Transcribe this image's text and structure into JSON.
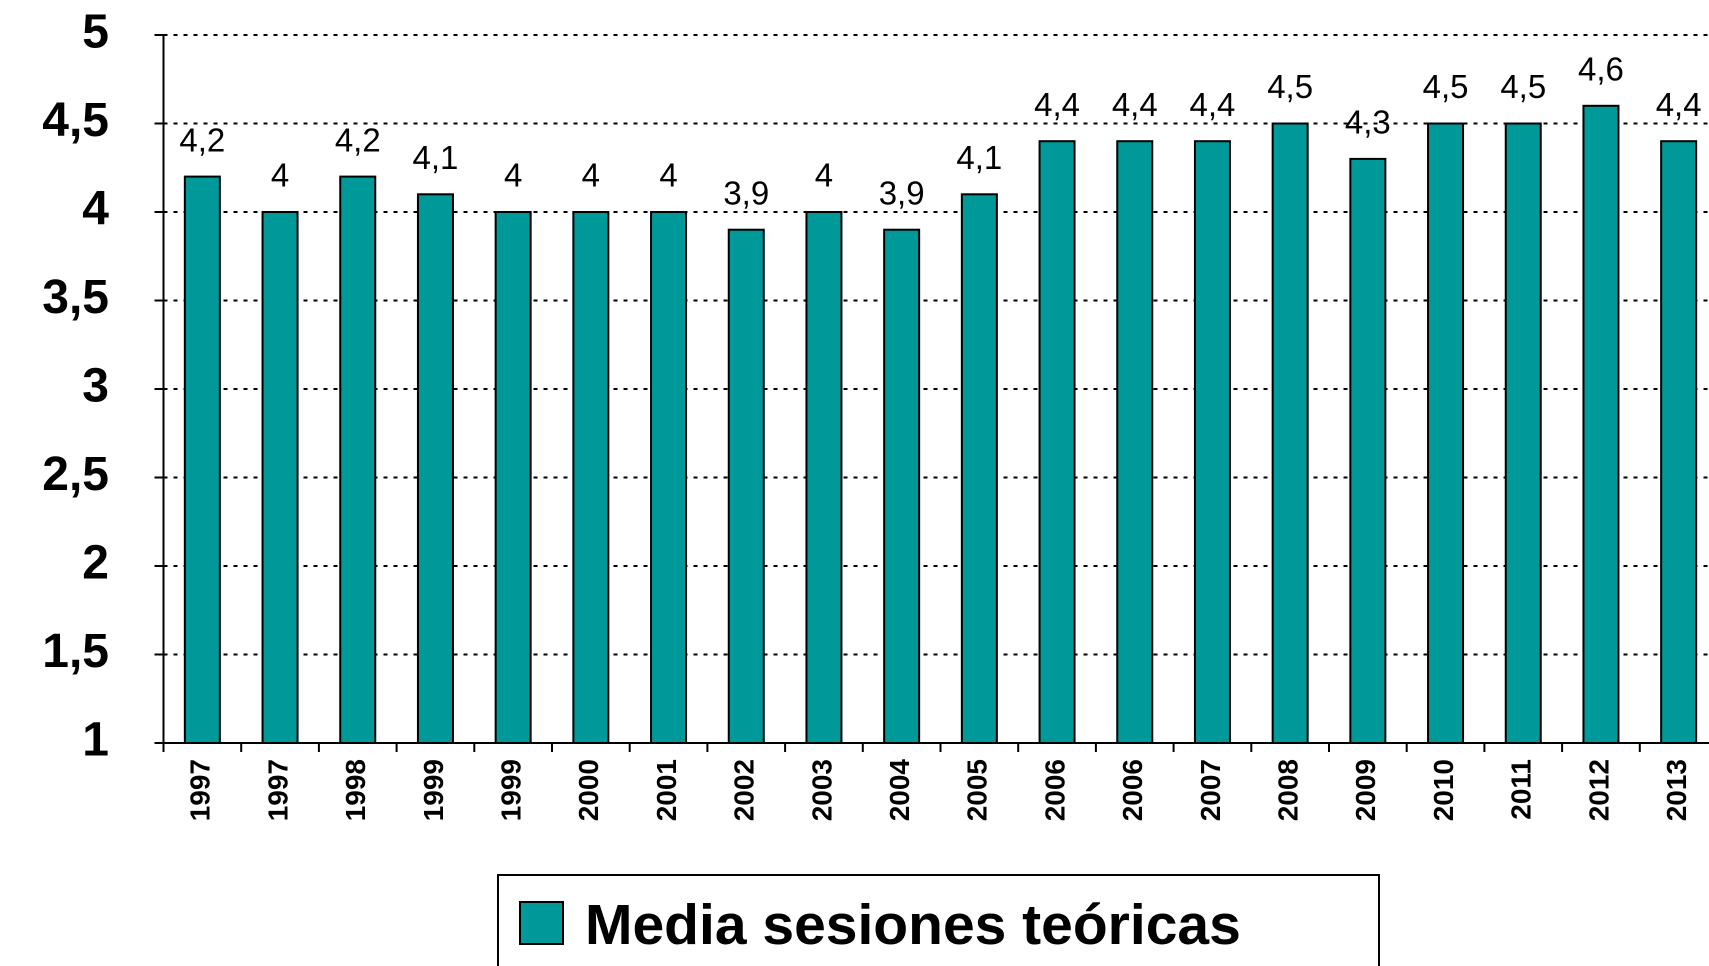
{
  "chart_data": {
    "type": "bar",
    "categories": [
      "1997",
      "1997",
      "1998",
      "1999",
      "1999",
      "2000",
      "2001",
      "2002",
      "2003",
      "2004",
      "2005",
      "2006",
      "2006",
      "2007",
      "2008",
      "2009",
      "2010",
      "2011",
      "2012",
      "2013"
    ],
    "series": [
      {
        "name": "Media sesiones teóricas",
        "color": "#009999",
        "values": [
          4.2,
          4,
          4.2,
          4.1,
          4,
          4,
          4,
          3.9,
          4,
          3.9,
          4.1,
          4.4,
          4.4,
          4.4,
          4.5,
          4.3,
          4.5,
          4.5,
          4.6,
          4.4
        ],
        "value_labels": [
          "4,2",
          "4",
          "4,2",
          "4,1",
          "4",
          "4",
          "4",
          "3,9",
          "4",
          "3,9",
          "4,1",
          "4,4",
          "4,4",
          "4,4",
          "4,5",
          "4,3",
          "4,5",
          "4,5",
          "4,6",
          "4,4"
        ]
      }
    ],
    "ylim": [
      1,
      5
    ],
    "yticks": [
      1,
      {
        "value": 1.5,
        "label": "1,5"
      },
      2,
      {
        "value": 2.5,
        "label": "2,5"
      },
      3,
      {
        "value": 3.5,
        "label": "3,5"
      },
      4,
      {
        "value": 4.5,
        "label": "4,5"
      },
      5
    ],
    "grid": true,
    "legend": "bottom"
  }
}
